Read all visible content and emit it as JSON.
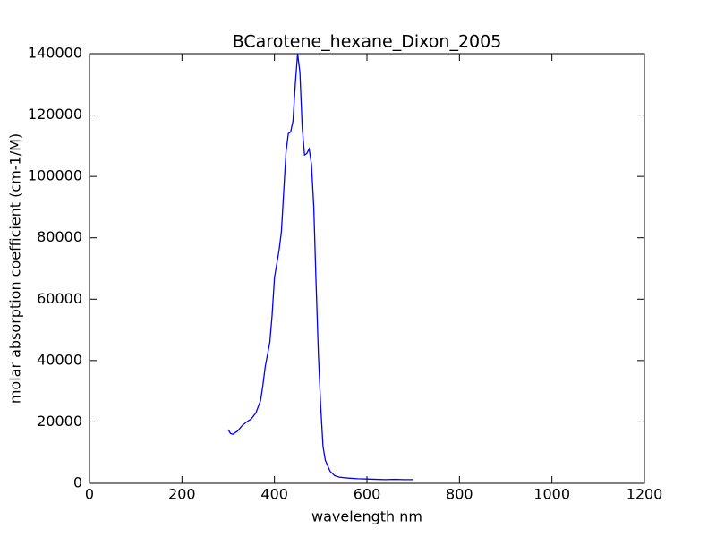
{
  "chart_data": {
    "type": "line",
    "title": "BCarotene_hexane_Dixon_2005",
    "x_label": "wavelength nm",
    "y_label": "molar absorption coefficient (cm-1/M)",
    "x": [
      300,
      305,
      310,
      320,
      330,
      340,
      350,
      360,
      370,
      375,
      380,
      390,
      395,
      400,
      410,
      415,
      420,
      425,
      430,
      435,
      440,
      445,
      450,
      455,
      460,
      465,
      470,
      475,
      480,
      485,
      490,
      495,
      500,
      505,
      510,
      520,
      530,
      540,
      560,
      580,
      600,
      620,
      640,
      660,
      680,
      700
    ],
    "series": [
      {
        "color": "#0000ff",
        "values": [
          17500,
          16200,
          16000,
          17000,
          18800,
          20000,
          21000,
          23000,
          27000,
          32000,
          38000,
          46000,
          55000,
          67000,
          76000,
          82000,
          95000,
          108000,
          114000,
          114500,
          118000,
          130000,
          140000,
          134000,
          116000,
          107000,
          107500,
          109000,
          104000,
          90000,
          65000,
          42000,
          25000,
          12000,
          7500,
          4000,
          2500,
          2000,
          1700,
          1500,
          1400,
          1300,
          1200,
          1300,
          1200,
          1200
        ]
      }
    ],
    "xlim": [
      0,
      1200
    ],
    "xticks": [
      0,
      200,
      400,
      600,
      800,
      1000,
      1200
    ],
    "ylim": [
      0,
      140000
    ],
    "yticks": [
      0,
      20000,
      40000,
      60000,
      80000,
      100000,
      120000,
      140000
    ]
  }
}
